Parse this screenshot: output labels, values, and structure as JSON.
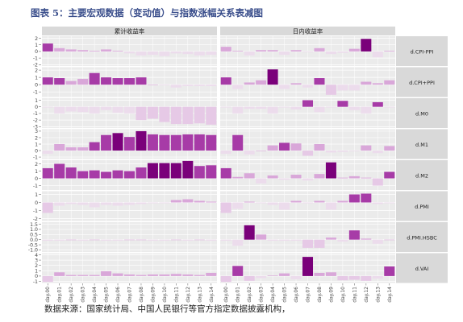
{
  "title": "图表 5：主要宏观数据（变动值）与指数涨幅关系表减图",
  "source": "数据来源：国家统计局、中国人民银行等官方指定数据披露机构，",
  "colors": {
    "positive_scale": [
      "#d9a7d9",
      "#a73ba7",
      "#7a007a"
    ],
    "negative_scale": [
      "#ecdcec",
      "#e6c9e6"
    ],
    "panel_bg": "#ebebeb",
    "strip_bg": "#d9d9d9",
    "grid": "#ffffff"
  },
  "chart_data": {
    "type": "bar",
    "facets": {
      "columns": [
        "累计收益率",
        "日内收益率"
      ],
      "rows": [
        "d.CPI-PPI",
        "d.CPI+PPI",
        "d.M0",
        "d.M1",
        "d.M2",
        "d.PMI",
        "d.PMI.HSBC",
        "d.VAI"
      ]
    },
    "categories": [
      "day.00",
      "day.01",
      "day.02",
      "day.03",
      "day.04",
      "day.05",
      "day.06",
      "day.07",
      "day.08",
      "day.09",
      "day.10",
      "day.11",
      "day.12",
      "day.13",
      "day.14"
    ],
    "y_ticks": {
      "d.CPI-PPI": [
        "2",
        "1",
        "0",
        "-1",
        "-2"
      ],
      "d.CPI+PPI": [
        "2",
        "1",
        "0",
        "-1"
      ],
      "d.M0": [
        "1",
        "0",
        "-1",
        "-2",
        "-3"
      ],
      "d.M1": [
        "3",
        "2",
        "1",
        "0",
        "-1"
      ],
      "d.M2": [
        "2",
        "1",
        "0",
        "-1"
      ],
      "d.PMI": [
        "1",
        "0",
        "-1",
        "-2"
      ],
      "d.PMI.HSBC": [
        "1.5",
        "1.0",
        "0.5",
        "0.0",
        "-0.5",
        "-1.0"
      ],
      "d.VAI": [
        "4",
        "3",
        "2",
        "1",
        "0",
        "-1"
      ]
    },
    "ylim": {
      "d.CPI-PPI": [
        -2.2,
        2.3
      ],
      "d.CPI+PPI": [
        -1.7,
        2.4
      ],
      "d.M0": [
        -3.2,
        1.3
      ],
      "d.M1": [
        -1.3,
        3.3
      ],
      "d.M2": [
        -1.6,
        2.5
      ],
      "d.PMI": [
        -2.3,
        1.4
      ],
      "d.PMI.HSBC": [
        -1.2,
        1.7
      ],
      "d.VAI": [
        -1.3,
        4.3
      ]
    },
    "series": [
      {
        "panel": "d.CPI-PPI",
        "cumulative": [
          1.2,
          0.5,
          0.3,
          0.2,
          0.1,
          0.3,
          0.1,
          -0.3,
          -0.6,
          -0.5,
          -0.7,
          -0.3,
          -0.4,
          -0.6,
          -0.5
        ],
        "intraday": [
          0.7,
          0.1,
          -0.6,
          0.2,
          0.2,
          -0.5,
          0.2,
          -0.1,
          0.5,
          -0.4,
          -0.2,
          0.4,
          1.9,
          -0.9,
          0.1
        ]
      },
      {
        "panel": "d.CPI+PPI",
        "cumulative": [
          1.0,
          0.9,
          0.5,
          0.8,
          1.6,
          1.0,
          0.9,
          0.9,
          1.0,
          0.0,
          -0.1,
          -0.4,
          -0.2,
          -0.2,
          -0.2
        ],
        "intraday": [
          1.0,
          -0.6,
          0.3,
          0.6,
          2.1,
          -0.6,
          0.2,
          -0.4,
          0.9,
          -1.4,
          -0.8,
          -0.8,
          0.4,
          0.2,
          0.6
        ]
      },
      {
        "panel": "d.M0",
        "cumulative": [
          -0.1,
          -1.0,
          -0.7,
          -0.8,
          -1.0,
          -0.5,
          -0.9,
          -1.0,
          -2.0,
          -1.8,
          -2.3,
          -2.6,
          -2.6,
          -2.5,
          -2.7
        ],
        "intraday": [
          -0.1,
          -1.0,
          -0.3,
          -0.3,
          -1.0,
          -0.1,
          -0.4,
          1.0,
          -0.8,
          -0.1,
          0.9,
          -0.5,
          -1.0,
          0.7,
          -0.1
        ]
      },
      {
        "panel": "d.M1",
        "cumulative": [
          -0.5,
          1.0,
          0.5,
          0.5,
          1.3,
          2.4,
          2.7,
          2.1,
          3.0,
          2.5,
          2.4,
          2.4,
          2.5,
          2.5,
          2.4
        ],
        "intraday": [
          -0.5,
          2.4,
          -0.6,
          0.0,
          0.8,
          1.2,
          1.1,
          -0.8,
          1.0,
          -0.3,
          -0.2,
          -0.1,
          0.8,
          -0.4,
          0.7
        ]
      },
      {
        "panel": "d.M2",
        "cumulative": [
          1.4,
          2.0,
          1.5,
          1.0,
          1.1,
          0.9,
          1.1,
          1.0,
          1.5,
          2.1,
          2.1,
          2.1,
          2.4,
          1.7,
          1.8
        ],
        "intraday": [
          1.4,
          0.2,
          0.7,
          -0.7,
          0.4,
          -0.2,
          0.5,
          -0.3,
          0.6,
          2.2,
          0.1,
          0.3,
          0.1,
          -1.0,
          0.9
        ]
      },
      {
        "panel": "d.PMI",
        "cumulative": [
          -1.3,
          -0.4,
          -0.2,
          -0.3,
          -0.6,
          -0.3,
          -0.4,
          -0.3,
          -0.2,
          -0.1,
          -0.1,
          0.3,
          0.4,
          0.2,
          0.1
        ],
        "intraday": [
          -1.3,
          -0.8,
          0.1,
          -0.1,
          -0.3,
          -0.9,
          0.2,
          -0.1,
          0.2,
          -0.9,
          0.2,
          1.0,
          1.1,
          -0.2,
          -0.1
        ]
      },
      {
        "panel": "d.PMI.HSBC",
        "cumulative": [
          -0.1,
          -0.1,
          0.0,
          -0.1,
          0.0,
          -0.1,
          -0.1,
          0.0,
          0.0,
          -0.1,
          -0.1,
          0.0,
          -0.1,
          0.0,
          -0.1
        ],
        "intraday": [
          -0.1,
          -0.6,
          1.4,
          0.5,
          -0.1,
          -0.1,
          -0.1,
          -0.8,
          -0.8,
          0.2,
          -0.2,
          0.9,
          0.1,
          -0.4,
          0.0
        ]
      },
      {
        "panel": "d.VAI",
        "cumulative": [
          -1.1,
          0.7,
          0.2,
          0.2,
          0.2,
          0.9,
          0.5,
          0.3,
          0.2,
          0.3,
          0.3,
          0.4,
          0.3,
          0.2,
          0.6
        ],
        "intraday": [
          -1.1,
          1.9,
          -0.9,
          -0.4,
          0.1,
          0.5,
          -0.6,
          3.6,
          0.6,
          0.7,
          -0.8,
          -0.7,
          -0.9,
          -0.5,
          1.8
        ]
      }
    ]
  }
}
